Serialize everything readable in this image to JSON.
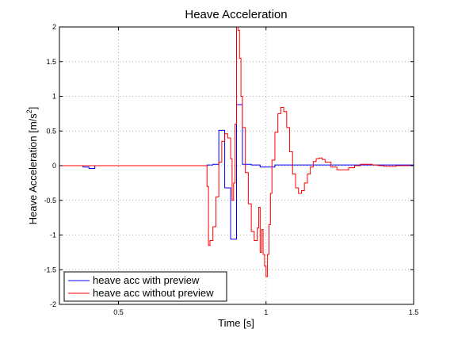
{
  "chart_data": {
    "type": "line",
    "title": "Heave Acceleration",
    "xlabel": "Time [s]",
    "ylabel_main": "Heave Acceleration [m/s",
    "ylabel_sup": "2",
    "ylabel_close": "]",
    "xlim": [
      0.3,
      1.5
    ],
    "ylim": [
      -2,
      2
    ],
    "x_ticks": [
      0.5,
      1,
      1.5
    ],
    "x_tick_labels": [
      "0.5",
      "1",
      "1.5"
    ],
    "y_ticks": [
      -2,
      -1.5,
      -1,
      -0.5,
      0,
      0.5,
      1,
      1.5,
      2
    ],
    "y_tick_labels": [
      "-2",
      "-1.5",
      "-1",
      "-0.5",
      "0",
      "0.5",
      "1",
      "1.5",
      "2"
    ],
    "grid": true,
    "legend_position": "bottom-left",
    "series": [
      {
        "name": "heave acc with preview",
        "color": "#0000ff",
        "step": true,
        "x": [
          0.3,
          0.38,
          0.4,
          0.42,
          0.8,
          0.82,
          0.84,
          0.86,
          0.88,
          0.9,
          0.92,
          0.95,
          0.98,
          1.0,
          1.03,
          1.5
        ],
        "y": [
          0,
          -0.02,
          -0.04,
          0,
          0.01,
          0.02,
          0.51,
          -0.32,
          -1.06,
          0.88,
          0.02,
          0.01,
          -0.02,
          -0.02,
          0.01,
          0.01
        ]
      },
      {
        "name": "heave acc without preview",
        "color": "#ff0000",
        "step": true,
        "x": [
          0.3,
          0.8,
          0.805,
          0.81,
          0.82,
          0.83,
          0.84,
          0.85,
          0.86,
          0.87,
          0.88,
          0.885,
          0.89,
          0.895,
          0.9,
          0.905,
          0.91,
          0.915,
          0.92,
          0.93,
          0.94,
          0.95,
          0.96,
          0.97,
          0.975,
          0.98,
          0.985,
          0.99,
          0.995,
          1.0,
          1.005,
          1.01,
          1.015,
          1.02,
          1.03,
          1.04,
          1.05,
          1.06,
          1.07,
          1.08,
          1.09,
          1.1,
          1.11,
          1.12,
          1.13,
          1.14,
          1.15,
          1.16,
          1.17,
          1.18,
          1.19,
          1.2,
          1.22,
          1.24,
          1.26,
          1.28,
          1.3,
          1.32,
          1.34,
          1.36,
          1.38,
          1.4,
          1.42,
          1.44,
          1.46,
          1.48,
          1.5
        ],
        "y": [
          0,
          -0.3,
          -1.15,
          -1.08,
          -0.88,
          -0.45,
          0.05,
          0.35,
          0.46,
          0.4,
          0.1,
          -0.5,
          -0.25,
          0.6,
          2.0,
          1.95,
          1.55,
          1.0,
          0.55,
          -0.1,
          -0.55,
          -0.95,
          -1.08,
          -0.9,
          -0.6,
          -1.25,
          -0.92,
          -1.28,
          -1.45,
          -1.6,
          -1.28,
          -0.85,
          -0.4,
          0.08,
          0.48,
          0.75,
          0.84,
          0.78,
          0.55,
          0.2,
          -0.12,
          -0.32,
          -0.4,
          -0.36,
          -0.25,
          -0.12,
          -0.02,
          0.06,
          0.1,
          0.11,
          0.09,
          0.05,
          -0.02,
          -0.06,
          -0.06,
          -0.03,
          0.0,
          0.02,
          0.02,
          0.01,
          0.0,
          -0.01,
          -0.01,
          0.0,
          0.0,
          0.0,
          0.0
        ]
      }
    ]
  }
}
